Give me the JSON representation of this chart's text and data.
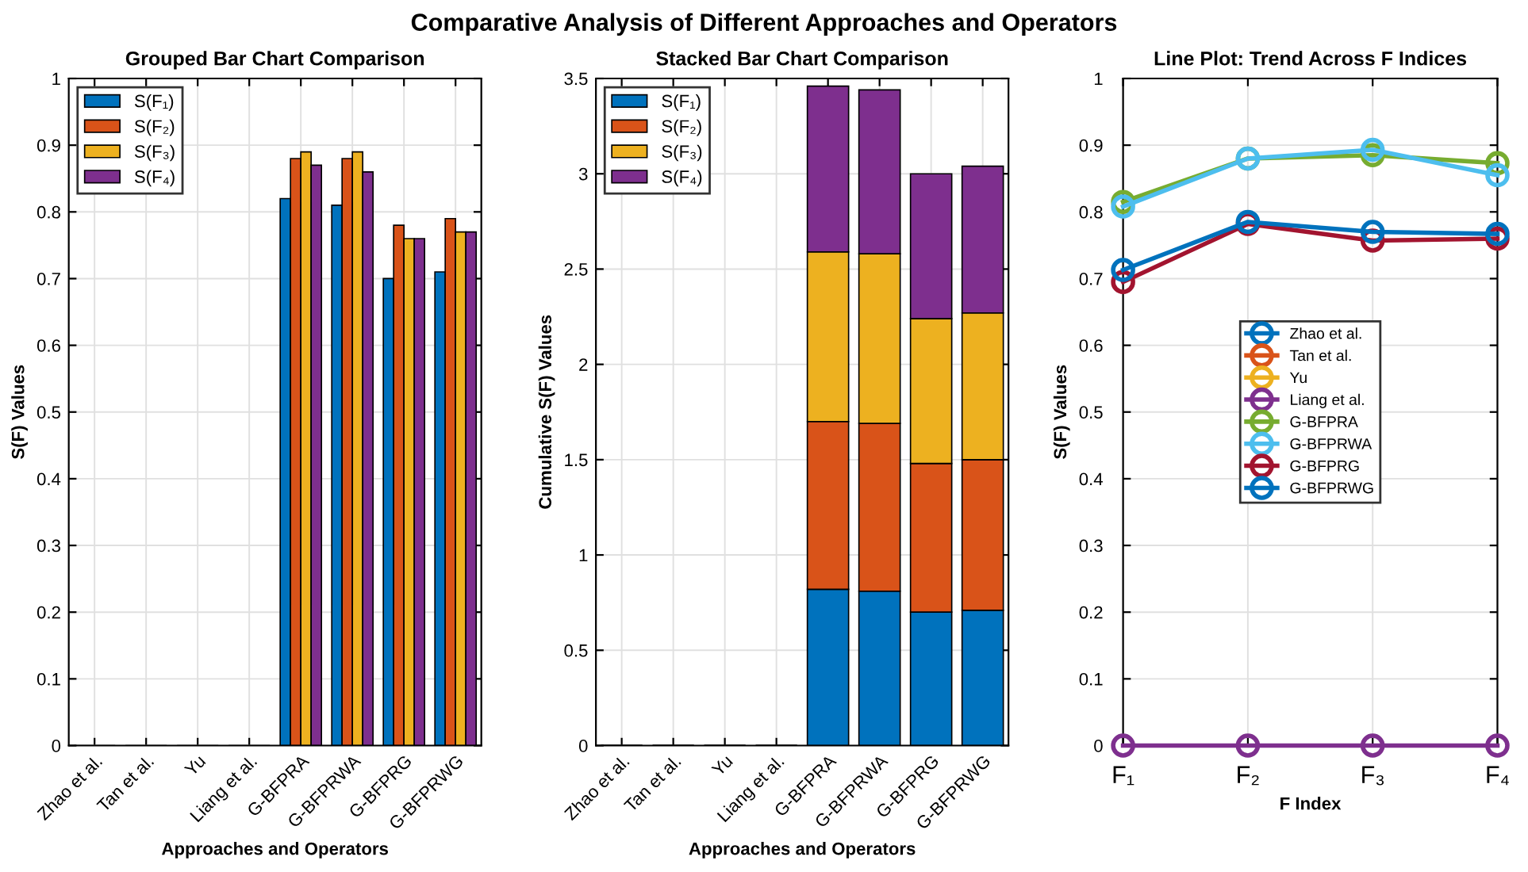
{
  "chart_data": [
    {
      "type": "bar",
      "title": "Grouped Bar Chart Comparison",
      "xlabel": "Approaches and Operators",
      "ylabel": "S(F) Values",
      "annotations": [
        "Comparative Analysis of Different Approaches and Operators"
      ],
      "categories": [
        "Zhao et al.",
        "Tan et al.",
        "Yu",
        "Liang et al.",
        "G-BFPRA",
        "G-BFPRWA",
        "G-BFPRG",
        "G-BFPRWG"
      ],
      "series": [
        {
          "name": "S(F₁)",
          "color": "#0072bd",
          "values": [
            null,
            null,
            null,
            null,
            0.82,
            0.81,
            0.7,
            0.71
          ]
        },
        {
          "name": "S(F₂)",
          "color": "#d95319",
          "values": [
            null,
            null,
            null,
            null,
            0.88,
            0.88,
            0.78,
            0.79
          ]
        },
        {
          "name": "S(F₃)",
          "color": "#edb120",
          "values": [
            null,
            null,
            null,
            null,
            0.89,
            0.89,
            0.76,
            0.77
          ]
        },
        {
          "name": "S(F₄)",
          "color": "#7e2f8e",
          "values": [
            null,
            null,
            null,
            null,
            0.87,
            0.86,
            0.76,
            0.77
          ]
        }
      ],
      "ylim": [
        0,
        1
      ],
      "yticks": [
        0,
        0.1,
        0.2,
        0.3,
        0.4,
        0.5,
        0.6,
        0.7,
        0.8,
        0.9,
        1
      ],
      "grid": true,
      "legend": "top left"
    },
    {
      "type": "bar",
      "stacked": true,
      "title": "Stacked Bar Chart Comparison",
      "xlabel": "Approaches and Operators",
      "ylabel": "Cumulative S(F) Values",
      "categories": [
        "Zhao et al.",
        "Tan et al.",
        "Yu",
        "Liang et al.",
        "G-BFPRA",
        "G-BFPRWA",
        "G-BFPRG",
        "G-BFPRWG"
      ],
      "series": [
        {
          "name": "S(F₁)",
          "color": "#0072bd",
          "values": [
            null,
            null,
            null,
            null,
            0.82,
            0.81,
            0.7,
            0.71
          ]
        },
        {
          "name": "S(F₂)",
          "color": "#d95319",
          "values": [
            null,
            null,
            null,
            null,
            0.88,
            0.88,
            0.78,
            0.79
          ]
        },
        {
          "name": "S(F₃)",
          "color": "#edb120",
          "values": [
            null,
            null,
            null,
            null,
            0.89,
            0.89,
            0.76,
            0.77
          ]
        },
        {
          "name": "S(F₄)",
          "color": "#7e2f8e",
          "values": [
            null,
            null,
            null,
            null,
            0.87,
            0.86,
            0.76,
            0.77
          ]
        }
      ],
      "ylim": [
        0,
        3.5
      ],
      "yticks": [
        0,
        0.5,
        1,
        1.5,
        2,
        2.5,
        3,
        3.5
      ],
      "grid": true,
      "legend": "top left"
    },
    {
      "type": "line",
      "title": "Line Plot: Trend Across F Indices",
      "xlabel": "F Index",
      "ylabel": "S(F) Values",
      "categories": [
        "F₁",
        "F₂",
        "F₃",
        "F₄"
      ],
      "series": [
        {
          "name": "Zhao et al.",
          "color": "#0072bd",
          "values": [
            null,
            null,
            null,
            null
          ]
        },
        {
          "name": "Tan et al.",
          "color": "#d95319",
          "values": [
            null,
            null,
            null,
            null
          ]
        },
        {
          "name": "Yu",
          "color": "#edb120",
          "values": [
            null,
            null,
            null,
            null
          ]
        },
        {
          "name": "Liang et al.",
          "color": "#7e2f8e",
          "values": [
            0,
            0,
            0,
            0
          ]
        },
        {
          "name": "G-BFPRA",
          "color": "#77ac30",
          "values": [
            0.815,
            0.88,
            0.885,
            0.873
          ]
        },
        {
          "name": "G-BFPRWA",
          "color": "#4dbeee",
          "values": [
            0.808,
            0.88,
            0.893,
            0.855
          ]
        },
        {
          "name": "G-BFPRG",
          "color": "#a2142f",
          "values": [
            0.695,
            0.782,
            0.757,
            0.76
          ]
        },
        {
          "name": "G-BFPRWG",
          "color": "#0072bd",
          "values": [
            0.713,
            0.785,
            0.77,
            0.767
          ]
        }
      ],
      "ylim": [
        0,
        1
      ],
      "yticks": [
        0,
        0.1,
        0.2,
        0.3,
        0.4,
        0.5,
        0.6,
        0.7,
        0.8,
        0.9,
        1
      ],
      "grid": true,
      "legend": "center",
      "marker": "circle",
      "line_style": "solid"
    }
  ]
}
